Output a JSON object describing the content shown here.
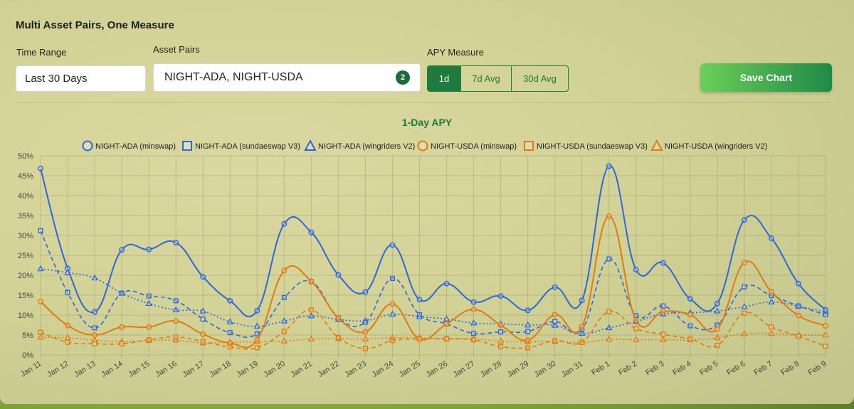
{
  "page_title": "Multi Asset Pairs, One Measure",
  "time_range": {
    "label": "Time Range",
    "value": "Last 30 Days"
  },
  "asset_pairs": {
    "label": "Asset Pairs",
    "value": "NIGHT-ADA, NIGHT-USDA",
    "count": "2"
  },
  "apy_measure": {
    "label": "APY Measure",
    "options": [
      "1d",
      "7d Avg",
      "30d Avg"
    ],
    "selected": "1d"
  },
  "save_button": "Save Chart",
  "colors": {
    "blue": "#2f67d8",
    "orange": "#e07b12",
    "green": "#1f7a3d"
  },
  "chart_data": {
    "type": "line",
    "title": "1-Day APY",
    "legend_position": "top-center",
    "grid": true,
    "ylim": [
      0,
      50
    ],
    "yticks": [
      "0%",
      "5%",
      "10%",
      "15%",
      "20%",
      "25%",
      "30%",
      "35%",
      "40%",
      "45%",
      "50%"
    ],
    "categories": [
      "Jan 11",
      "Jan 12",
      "Jan 13",
      "Jan 14",
      "Jan 15",
      "Jan 16",
      "Jan 17",
      "Jan 18",
      "Jan 19",
      "Jan 20",
      "Jan 21",
      "Jan 22",
      "Jan 23",
      "Jan 24",
      "Jan 25",
      "Jan 26",
      "Jan 27",
      "Jan 28",
      "Jan 29",
      "Jan 30",
      "Jan 31",
      "Feb 1",
      "Feb 2",
      "Feb 3",
      "Feb 4",
      "Feb 5",
      "Feb 6",
      "Feb 7",
      "Feb 8",
      "Feb 9"
    ],
    "series": [
      {
        "name": "NIGHT-ADA (minswap)",
        "color": "blue",
        "style": "solid",
        "marker": "circle",
        "values": [
          46.8,
          21.7,
          10.8,
          26.4,
          26.5,
          28.2,
          19.6,
          13.6,
          11.1,
          32.9,
          30.8,
          20.1,
          15.8,
          27.6,
          13.9,
          17.9,
          13.3,
          14.8,
          11.2,
          17,
          13.7,
          47.4,
          21.4,
          23.1,
          14.1,
          12.9,
          33.9,
          29.3,
          17.9,
          11.3
        ]
      },
      {
        "name": "NIGHT-ADA (sundaeswap V3)",
        "color": "blue",
        "style": "dashed",
        "marker": "square",
        "values": [
          31.2,
          15.7,
          6.8,
          15.5,
          14.8,
          13.6,
          9,
          5.6,
          5.3,
          14.4,
          18.4,
          9.3,
          8.2,
          19.2,
          10.1,
          7.8,
          5.4,
          5.8,
          5.9,
          8.4,
          6.4,
          24.1,
          9.9,
          12.3,
          7.3,
          7.5,
          17.1,
          14.9,
          12.3,
          10.1
        ]
      },
      {
        "name": "NIGHT-ADA (wingriders V2)",
        "color": "blue",
        "style": "dotted",
        "marker": "triangle",
        "values": [
          21.6,
          20.7,
          19.3,
          15.5,
          12.9,
          11.3,
          11,
          8.3,
          7.2,
          8.5,
          9.8,
          8.9,
          8.6,
          10.2,
          9.6,
          9,
          8,
          7.8,
          7.5,
          7.4,
          5.4,
          6.8,
          8.4,
          10.3,
          10.6,
          11,
          12.1,
          13.3,
          12.2,
          10.8
        ]
      },
      {
        "name": "NIGHT-USDA (minswap)",
        "color": "orange",
        "style": "solid",
        "marker": "circle",
        "values": [
          13.4,
          7.4,
          5,
          7,
          7,
          8.5,
          5.2,
          3,
          3.8,
          21.2,
          18.5,
          9.3,
          5.8,
          12.8,
          4,
          7.8,
          11.4,
          7.5,
          3.7,
          10.1,
          7.1,
          34.8,
          8.7,
          10.9,
          10.1,
          6.5,
          23.2,
          15.9,
          9.9,
          7.3
        ]
      },
      {
        "name": "NIGHT-USDA (sundaeswap V3)",
        "color": "orange",
        "style": "dashed",
        "marker": "square",
        "values": [
          5.7,
          3.2,
          2.8,
          2.8,
          3.8,
          4.5,
          3.4,
          2,
          1.8,
          5.9,
          11.3,
          4.4,
          1.6,
          3.6,
          4,
          4.1,
          3.8,
          2.1,
          1.8,
          3.6,
          3.2,
          10.9,
          6.6,
          5.2,
          4,
          2.4,
          10.5,
          7,
          4.7,
          2.2
        ]
      },
      {
        "name": "NIGHT-USDA (wingriders V2)",
        "color": "orange",
        "style": "dotted",
        "marker": "triangle",
        "values": [
          4.4,
          4.3,
          3.7,
          3.3,
          3.6,
          3.7,
          3,
          3.2,
          3.3,
          3.5,
          4,
          4.1,
          4,
          4.3,
          4.3,
          4,
          4,
          3.5,
          3.3,
          3.4,
          3.1,
          3.9,
          3.8,
          3.8,
          3.8,
          4.3,
          5.3,
          5.4,
          5,
          5
        ]
      }
    ]
  }
}
